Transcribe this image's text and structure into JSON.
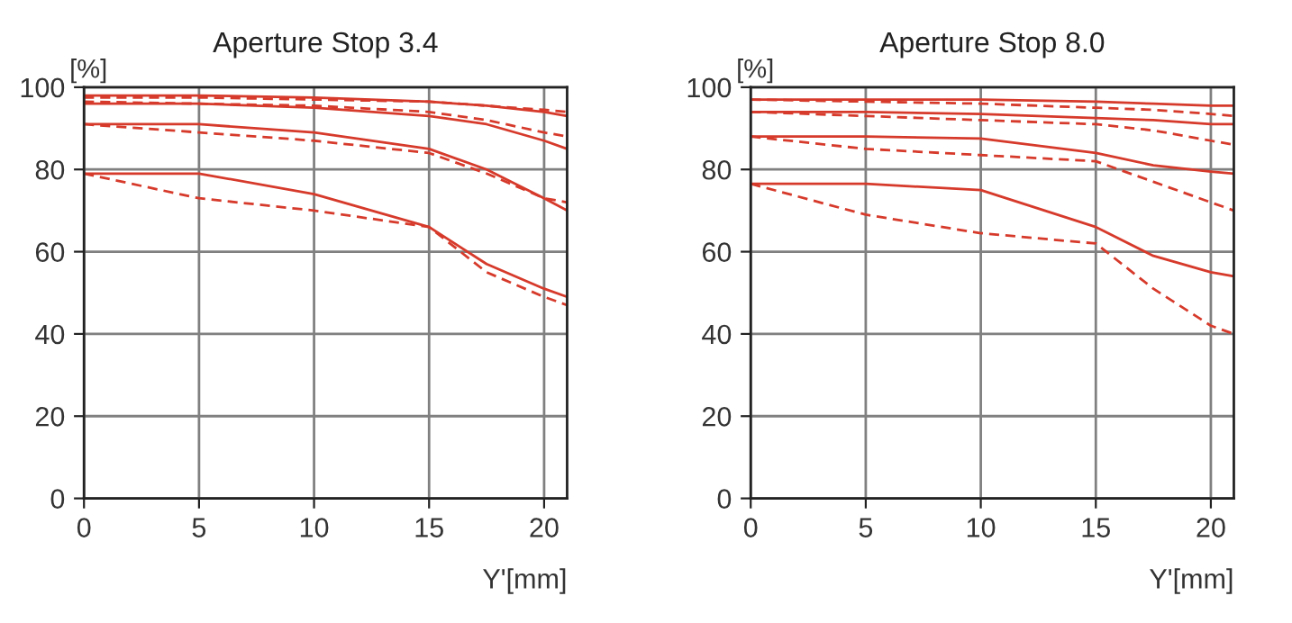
{
  "chart_data": [
    {
      "type": "line",
      "title": "Aperture Stop 3.4",
      "xlabel": "Y'[mm]",
      "ylabel": "[%]",
      "xlim": [
        0,
        21
      ],
      "ylim": [
        0,
        100
      ],
      "xticks": [
        0,
        5,
        10,
        15,
        20
      ],
      "yticks": [
        0,
        20,
        40,
        60,
        80,
        100
      ],
      "grid": true,
      "x": [
        0,
        5,
        10,
        15,
        17.5,
        20,
        21
      ],
      "series": [
        {
          "color": "#d63a2b",
          "line_style": "solid",
          "values": [
            98,
            98,
            97.5,
            96.5,
            95.5,
            94,
            93
          ]
        },
        {
          "color": "#d63a2b",
          "line_style": "dashed",
          "values": [
            97.5,
            97.5,
            97,
            96.5,
            95.5,
            94.5,
            94
          ]
        },
        {
          "color": "#d63a2b",
          "line_style": "solid",
          "values": [
            96,
            96,
            95,
            93,
            91,
            87,
            85
          ]
        },
        {
          "color": "#d63a2b",
          "line_style": "dashed",
          "values": [
            96.5,
            96,
            95.5,
            94,
            92,
            89,
            88
          ]
        },
        {
          "color": "#d63a2b",
          "line_style": "solid",
          "values": [
            91,
            91,
            89,
            85,
            80,
            73,
            70
          ]
        },
        {
          "color": "#d63a2b",
          "line_style": "dashed",
          "values": [
            91,
            89,
            87,
            84,
            79,
            73,
            72
          ]
        },
        {
          "color": "#d63a2b",
          "line_style": "solid",
          "values": [
            79,
            79,
            74,
            66,
            57,
            51,
            49
          ]
        },
        {
          "color": "#d63a2b",
          "line_style": "dashed",
          "values": [
            79,
            73,
            70,
            66,
            55,
            49,
            47
          ]
        }
      ]
    },
    {
      "type": "line",
      "title": "Aperture Stop 8.0",
      "xlabel": "Y'[mm]",
      "ylabel": "[%]",
      "xlim": [
        0,
        21
      ],
      "ylim": [
        0,
        100
      ],
      "xticks": [
        0,
        5,
        10,
        15,
        20
      ],
      "yticks": [
        0,
        20,
        40,
        60,
        80,
        100
      ],
      "grid": true,
      "x": [
        0,
        5,
        10,
        15,
        17.5,
        20,
        21
      ],
      "series": [
        {
          "color": "#d63a2b",
          "line_style": "solid",
          "values": [
            97,
            97,
            97,
            96.5,
            96,
            95.5,
            95.5
          ]
        },
        {
          "color": "#d63a2b",
          "line_style": "dashed",
          "values": [
            97,
            96.5,
            96,
            95,
            94.5,
            93.5,
            93
          ]
        },
        {
          "color": "#d63a2b",
          "line_style": "solid",
          "values": [
            94,
            94,
            93.5,
            92.5,
            92,
            91,
            91
          ]
        },
        {
          "color": "#d63a2b",
          "line_style": "dashed",
          "values": [
            94,
            93,
            92,
            91,
            89.5,
            87,
            86
          ]
        },
        {
          "color": "#d63a2b",
          "line_style": "solid",
          "values": [
            88,
            88,
            87.5,
            84,
            81,
            79.5,
            79
          ]
        },
        {
          "color": "#d63a2b",
          "line_style": "dashed",
          "values": [
            88,
            85,
            83.5,
            82,
            77,
            72,
            70
          ]
        },
        {
          "color": "#d63a2b",
          "line_style": "solid",
          "values": [
            76.5,
            76.5,
            75,
            66,
            59,
            55,
            54
          ]
        },
        {
          "color": "#d63a2b",
          "line_style": "dashed",
          "values": [
            76.5,
            69,
            64.5,
            62,
            51,
            42,
            40
          ]
        }
      ]
    }
  ]
}
